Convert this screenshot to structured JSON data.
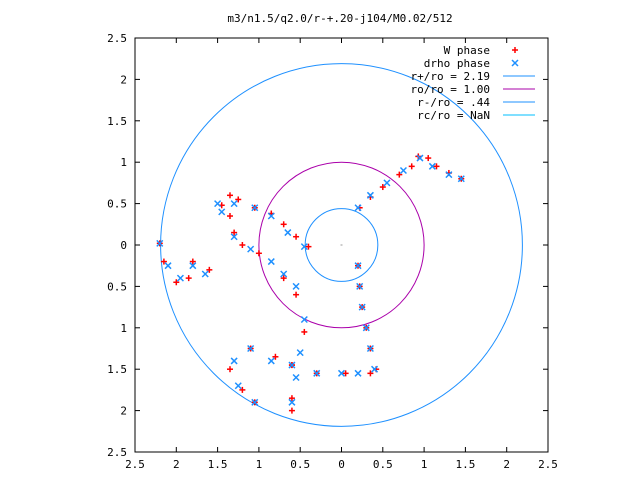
{
  "chart_data": {
    "type": "scatter",
    "title": "m3/n1.5/q2.0/r-+.20-j104/M0.02/512",
    "xlim": [
      2.5,
      -2.5
    ],
    "ylim": [
      -2.5,
      2.5
    ],
    "xticks": [
      2.5,
      2,
      1.5,
      1,
      0.5,
      0,
      0.5,
      1,
      1.5,
      2,
      2.5
    ],
    "xtick_values": [
      -2.5,
      -2,
      -1.5,
      -1,
      -0.5,
      0,
      0.5,
      1,
      1.5,
      2,
      2.5
    ],
    "yticks": [
      2.5,
      2,
      1.5,
      1,
      0.5,
      0,
      0.5,
      1,
      1.5,
      2,
      2.5
    ],
    "ytick_values": [
      2.5,
      2,
      1.5,
      1,
      0.5,
      0,
      -0.5,
      -1,
      -1.5,
      -2,
      -2.5
    ],
    "grid": false,
    "legend_position": "top-right",
    "series": [
      {
        "name": "W phase",
        "marker": "plus",
        "color": "#ff0000",
        "points": [
          [
            0.22,
            0.45
          ],
          [
            0.35,
            0.58
          ],
          [
            0.5,
            0.7
          ],
          [
            0.7,
            0.85
          ],
          [
            0.85,
            0.95
          ],
          [
            0.93,
            1.07
          ],
          [
            1.05,
            1.05
          ],
          [
            1.15,
            0.95
          ],
          [
            1.3,
            0.87
          ],
          [
            1.45,
            0.8
          ],
          [
            0.2,
            -0.25
          ],
          [
            0.22,
            -0.5
          ],
          [
            0.25,
            -0.75
          ],
          [
            0.3,
            -1.0
          ],
          [
            0.35,
            -1.25
          ],
          [
            0.42,
            -1.5
          ],
          [
            0.35,
            -1.55
          ],
          [
            0.05,
            -1.55
          ],
          [
            -0.3,
            -1.55
          ],
          [
            -0.6,
            -1.45
          ],
          [
            -0.8,
            -1.35
          ],
          [
            -1.1,
            -1.25
          ],
          [
            -1.35,
            -1.5
          ],
          [
            -1.2,
            -1.75
          ],
          [
            -1.05,
            -1.9
          ],
          [
            -0.4,
            -0.02
          ],
          [
            -0.55,
            0.1
          ],
          [
            -0.7,
            0.25
          ],
          [
            -0.85,
            0.38
          ],
          [
            -1.05,
            0.45
          ],
          [
            -1.25,
            0.55
          ],
          [
            -1.35,
            0.6
          ],
          [
            -1.45,
            0.48
          ],
          [
            -1.35,
            0.35
          ],
          [
            -1.3,
            0.15
          ],
          [
            -1.2,
            0.0
          ],
          [
            -1.0,
            -0.1
          ],
          [
            -0.7,
            -0.4
          ],
          [
            -0.55,
            -0.6
          ],
          [
            -0.45,
            -1.05
          ],
          [
            -0.6,
            -1.45
          ],
          [
            -0.6,
            -1.85
          ],
          [
            -0.6,
            -2.0
          ],
          [
            -2.2,
            0.02
          ],
          [
            -2.15,
            -0.2
          ],
          [
            -2.0,
            -0.45
          ],
          [
            -1.85,
            -0.4
          ],
          [
            -1.8,
            -0.2
          ],
          [
            -1.6,
            -0.3
          ]
        ]
      },
      {
        "name": "drho phase",
        "marker": "cross",
        "color": "#1e90ff",
        "points": [
          [
            0.2,
            0.45
          ],
          [
            0.35,
            0.6
          ],
          [
            0.55,
            0.75
          ],
          [
            0.75,
            0.9
          ],
          [
            0.95,
            1.05
          ],
          [
            1.1,
            0.95
          ],
          [
            1.3,
            0.85
          ],
          [
            1.45,
            0.8
          ],
          [
            0.2,
            -0.25
          ],
          [
            0.22,
            -0.5
          ],
          [
            0.25,
            -0.75
          ],
          [
            0.3,
            -1.0
          ],
          [
            0.35,
            -1.25
          ],
          [
            0.4,
            -1.5
          ],
          [
            0.2,
            -1.55
          ],
          [
            0.0,
            -1.55
          ],
          [
            -0.3,
            -1.55
          ],
          [
            -0.6,
            -1.45
          ],
          [
            -0.85,
            -1.4
          ],
          [
            -1.1,
            -1.25
          ],
          [
            -1.3,
            -1.4
          ],
          [
            -1.25,
            -1.7
          ],
          [
            -1.05,
            -1.9
          ],
          [
            -0.45,
            -0.02
          ],
          [
            -0.65,
            0.15
          ],
          [
            -0.85,
            0.35
          ],
          [
            -1.05,
            0.45
          ],
          [
            -1.3,
            0.5
          ],
          [
            -1.45,
            0.4
          ],
          [
            -1.3,
            0.1
          ],
          [
            -1.1,
            -0.05
          ],
          [
            -0.85,
            -0.2
          ],
          [
            -0.7,
            -0.35
          ],
          [
            -0.55,
            -0.5
          ],
          [
            -0.45,
            -0.9
          ],
          [
            -0.5,
            -1.3
          ],
          [
            -0.55,
            -1.6
          ],
          [
            -0.6,
            -1.9
          ],
          [
            -2.2,
            0.02
          ],
          [
            -2.1,
            -0.25
          ],
          [
            -1.95,
            -0.4
          ],
          [
            -1.8,
            -0.25
          ],
          [
            -1.65,
            -0.35
          ],
          [
            -1.5,
            0.5
          ]
        ]
      }
    ],
    "circles": [
      {
        "name": "r+/ro = 2.19",
        "radius": 2.19,
        "color": "#1e90ff"
      },
      {
        "name": "ro/ro = 1.00",
        "radius": 1.0,
        "color": "#aa00aa"
      },
      {
        "name": "r-/ro = .44",
        "radius": 0.44,
        "color": "#1e90ff"
      },
      {
        "name": "rc/ro = NaN",
        "radius": null,
        "color": "#00bfff"
      }
    ]
  }
}
